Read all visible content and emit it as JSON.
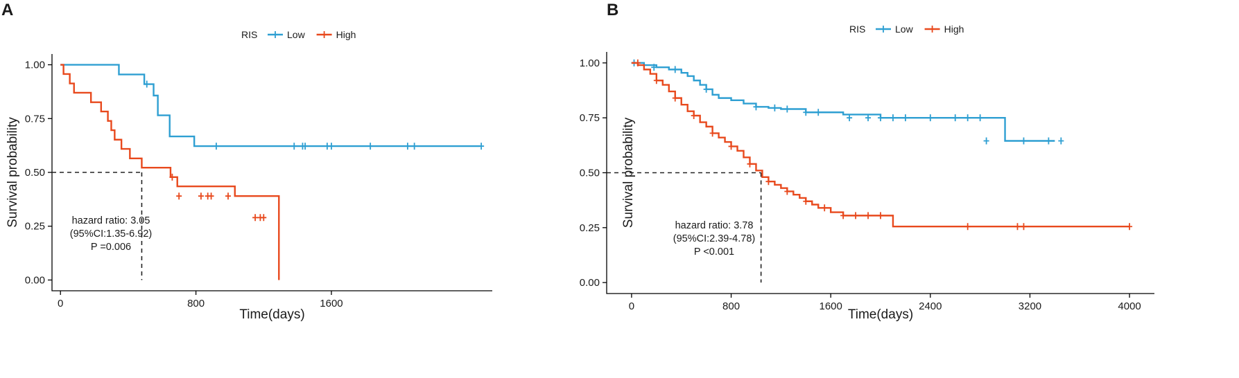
{
  "chart_data": [
    {
      "type": "line",
      "panel_label": "A",
      "legend_title": "RIS",
      "ylabel": "Survival probability",
      "xlabel": "Time(days)",
      "xlim": [
        -50,
        2550
      ],
      "ylim": [
        -0.05,
        1.05
      ],
      "x_ticks": [
        0,
        800,
        1600
      ],
      "x_tick_labels": [
        "0",
        "800",
        "1600"
      ],
      "y_ticks": [
        0,
        0.25,
        0.5,
        0.75,
        1
      ],
      "y_tick_labels": [
        "0.00",
        "0.25",
        "0.50",
        "0.75",
        "1.00"
      ],
      "annotation": [
        "hazard ratio: 3.05",
        "(95%CI:1.35-6.92)",
        "P =0.006"
      ],
      "median": {
        "x": 480,
        "y": 0.5
      },
      "series": [
        {
          "name": "Low",
          "color": "#2E9FD2",
          "x": [
            0,
            345,
            495,
            550,
            575,
            645,
            790,
            2480
          ],
          "y": [
            1.0,
            0.955,
            0.91,
            0.857,
            0.765,
            0.667,
            0.622,
            0.622
          ],
          "censored": [
            [
              510,
              0.91
            ],
            [
              920,
              0.622
            ],
            [
              1380,
              0.622
            ],
            [
              1430,
              0.622
            ],
            [
              1445,
              0.622
            ],
            [
              1575,
              0.622
            ],
            [
              1600,
              0.622
            ],
            [
              1830,
              0.622
            ],
            [
              2050,
              0.622
            ],
            [
              2090,
              0.622
            ],
            [
              2485,
              0.622
            ]
          ]
        },
        {
          "name": "High",
          "color": "#E8491D",
          "x": [
            0,
            18,
            55,
            80,
            180,
            240,
            280,
            300,
            320,
            360,
            410,
            480,
            650,
            690,
            1030,
            1290,
            1290
          ],
          "y": [
            1.0,
            0.957,
            0.913,
            0.87,
            0.826,
            0.783,
            0.739,
            0.696,
            0.652,
            0.609,
            0.565,
            0.522,
            0.478,
            0.435,
            0.39,
            0.29,
            0.0
          ],
          "censored": [
            [
              660,
              0.478
            ],
            [
              700,
              0.39
            ],
            [
              830,
              0.39
            ],
            [
              870,
              0.39
            ],
            [
              890,
              0.39
            ],
            [
              990,
              0.39
            ],
            [
              1150,
              0.29
            ],
            [
              1180,
              0.29
            ],
            [
              1200,
              0.29
            ]
          ]
        }
      ]
    },
    {
      "type": "line",
      "panel_label": "B",
      "legend_title": "RIS",
      "ylabel": "Survival probability",
      "xlabel": "Time(days)",
      "xlim": [
        -200,
        4200
      ],
      "ylim": [
        -0.05,
        1.05
      ],
      "x_ticks": [
        0,
        800,
        1600,
        2400,
        3200,
        4000
      ],
      "x_tick_labels": [
        "0",
        "800",
        "1600",
        "2400",
        "3200",
        "4000"
      ],
      "y_ticks": [
        0,
        0.25,
        0.5,
        0.75,
        1
      ],
      "y_tick_labels": [
        "0.00",
        "0.25",
        "0.50",
        "0.75",
        "1.00"
      ],
      "annotation": [
        "hazard ratio: 3.78",
        "(95%CI:2.39-4.78)",
        "P <0.001"
      ],
      "median": {
        "x": 1040,
        "y": 0.5
      },
      "series": [
        {
          "name": "Low",
          "color": "#2E9FD2",
          "x": [
            0,
            100,
            200,
            300,
            400,
            450,
            500,
            550,
            600,
            650,
            700,
            800,
            900,
            1000,
            1100,
            1200,
            1400,
            1700,
            2000,
            2200,
            2500,
            2800,
            3000,
            3400
          ],
          "y": [
            1.0,
            0.99,
            0.98,
            0.97,
            0.955,
            0.94,
            0.92,
            0.9,
            0.88,
            0.855,
            0.84,
            0.83,
            0.815,
            0.8,
            0.795,
            0.79,
            0.775,
            0.765,
            0.75,
            0.75,
            0.75,
            0.75,
            0.645,
            0.645
          ],
          "censored": [
            [
              20,
              1.0
            ],
            [
              180,
              0.98
            ],
            [
              350,
              0.97
            ],
            [
              600,
              0.88
            ],
            [
              1000,
              0.8
            ],
            [
              1150,
              0.795
            ],
            [
              1250,
              0.79
            ],
            [
              1400,
              0.775
            ],
            [
              1500,
              0.775
            ],
            [
              1750,
              0.75
            ],
            [
              1900,
              0.75
            ],
            [
              2000,
              0.75
            ],
            [
              2100,
              0.75
            ],
            [
              2200,
              0.75
            ],
            [
              2400,
              0.75
            ],
            [
              2600,
              0.75
            ],
            [
              2700,
              0.75
            ],
            [
              2800,
              0.75
            ],
            [
              2850,
              0.645
            ],
            [
              3150,
              0.645
            ],
            [
              3350,
              0.645
            ],
            [
              3450,
              0.645
            ]
          ]
        },
        {
          "name": "High",
          "color": "#E8491D",
          "x": [
            0,
            50,
            100,
            150,
            200,
            250,
            300,
            350,
            400,
            450,
            500,
            550,
            600,
            650,
            700,
            750,
            800,
            850,
            900,
            950,
            1000,
            1050,
            1100,
            1150,
            1200,
            1250,
            1300,
            1350,
            1400,
            1450,
            1500,
            1600,
            1700,
            1800,
            1900,
            2000,
            2100,
            2500,
            3000,
            3500,
            4000
          ],
          "y": [
            1.0,
            0.99,
            0.97,
            0.95,
            0.92,
            0.9,
            0.87,
            0.84,
            0.81,
            0.78,
            0.76,
            0.73,
            0.71,
            0.68,
            0.66,
            0.64,
            0.62,
            0.6,
            0.57,
            0.54,
            0.51,
            0.48,
            0.46,
            0.445,
            0.43,
            0.415,
            0.4,
            0.385,
            0.37,
            0.355,
            0.34,
            0.32,
            0.305,
            0.305,
            0.305,
            0.305,
            0.255,
            0.255,
            0.255,
            0.255,
            0.255
          ],
          "censored": [
            [
              50,
              1.0
            ],
            [
              200,
              0.92
            ],
            [
              350,
              0.84
            ],
            [
              500,
              0.76
            ],
            [
              650,
              0.68
            ],
            [
              800,
              0.62
            ],
            [
              950,
              0.54
            ],
            [
              1100,
              0.46
            ],
            [
              1250,
              0.415
            ],
            [
              1400,
              0.37
            ],
            [
              1550,
              0.34
            ],
            [
              1700,
              0.305
            ],
            [
              1800,
              0.305
            ],
            [
              1900,
              0.305
            ],
            [
              2000,
              0.305
            ],
            [
              2700,
              0.255
            ],
            [
              3100,
              0.255
            ],
            [
              3150,
              0.255
            ],
            [
              4000,
              0.255
            ]
          ]
        }
      ]
    }
  ]
}
